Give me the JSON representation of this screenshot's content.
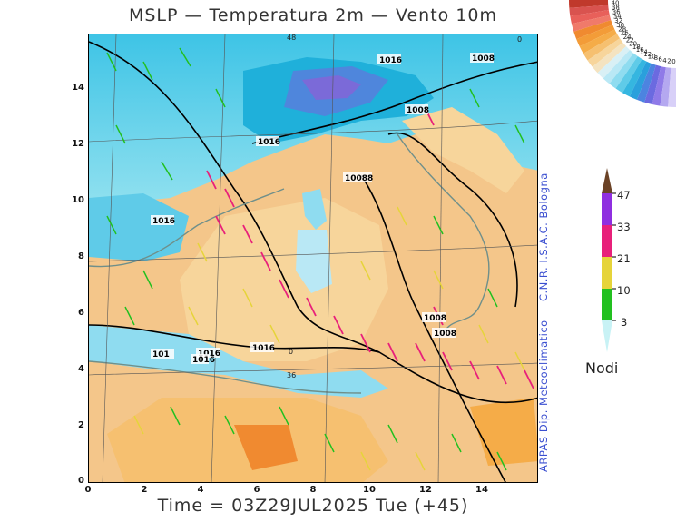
{
  "title": "MSLP — Temperatura 2m — Vento 10m",
  "footer": "Time = 03Z29JUL2025 Tue (+45)",
  "credit": "ARPAS Dip. Meteoclimatico — C.N.R. I.S.A.C. Bologna",
  "axes": {
    "y_ticks": [
      "14",
      "12",
      "10",
      "8",
      "6",
      "4",
      "2",
      "0"
    ],
    "x_ticks": [
      "0",
      "2",
      "4",
      "6",
      "8",
      "10",
      "12",
      "14"
    ]
  },
  "isobar_labels": [
    "1016",
    "1008",
    "1008",
    "1016",
    "10088",
    "1016",
    "1008",
    "1008",
    "1016",
    "1016",
    "101",
    "1016"
  ],
  "contour_labels": [
    "48",
    "0",
    "36",
    "0"
  ],
  "wind_legend": {
    "title": "Nodi",
    "levels": [
      "47",
      "33",
      "21",
      "10",
      "3"
    ],
    "colors": [
      "#6b4226",
      "#8f2fe0",
      "#e8207a",
      "#e6d43a",
      "#22c020",
      "#c8f2f5"
    ]
  },
  "temp_palette": {
    "labels": [
      "40",
      "38",
      "36",
      "34",
      "32",
      "30",
      "28",
      "26",
      "24",
      "22",
      "20",
      "18",
      "16",
      "14",
      "12",
      "10",
      "8",
      "6",
      "4",
      "2",
      "0"
    ],
    "colors": [
      "#c0392b",
      "#d9534f",
      "#e8605a",
      "#f07a6a",
      "#f08a30",
      "#f39c38",
      "#f5ac48",
      "#f6c070",
      "#f7d59b",
      "#f4e3c0",
      "#d9f0f5",
      "#b9e8f5",
      "#8fdcf0",
      "#5fcbe8",
      "#35b6e0",
      "#2aa0dc",
      "#4c84e0",
      "#6b6ae0",
      "#8f7ae8",
      "#b4a8f0",
      "#d8d0f8"
    ]
  }
}
